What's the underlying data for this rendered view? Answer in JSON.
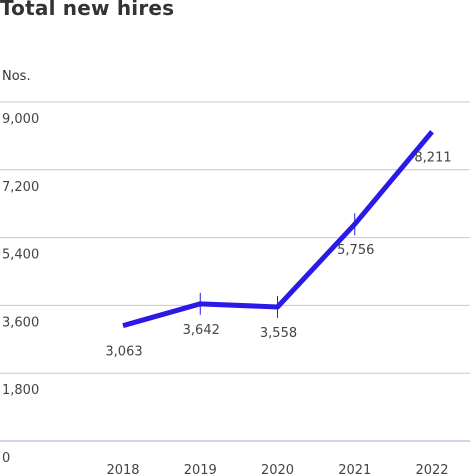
{
  "chart_data": {
    "type": "line",
    "title": "Total new hires",
    "ylabel": "Nos.",
    "xlabel": "",
    "categories": [
      "2018",
      "2019",
      "2020",
      "2021",
      "2022"
    ],
    "series": [
      {
        "values": [
          3063,
          3642,
          3558,
          5756,
          8211
        ]
      }
    ],
    "data_labels": [
      "3,063",
      "3,642",
      "3,558",
      "5,756",
      "8,211"
    ],
    "yticks": [
      0,
      1800,
      3600,
      5400,
      7200,
      9000
    ],
    "ytick_labels": [
      "0",
      "1,800",
      "3,600",
      "5,400",
      "7,200",
      "9,000"
    ],
    "ylim": [
      0,
      9000
    ],
    "grid": true,
    "legend": "none",
    "colors": {
      "line": "#2b19e6",
      "grid": "#c8c8c8",
      "baseline": "#a7a3e8"
    }
  }
}
